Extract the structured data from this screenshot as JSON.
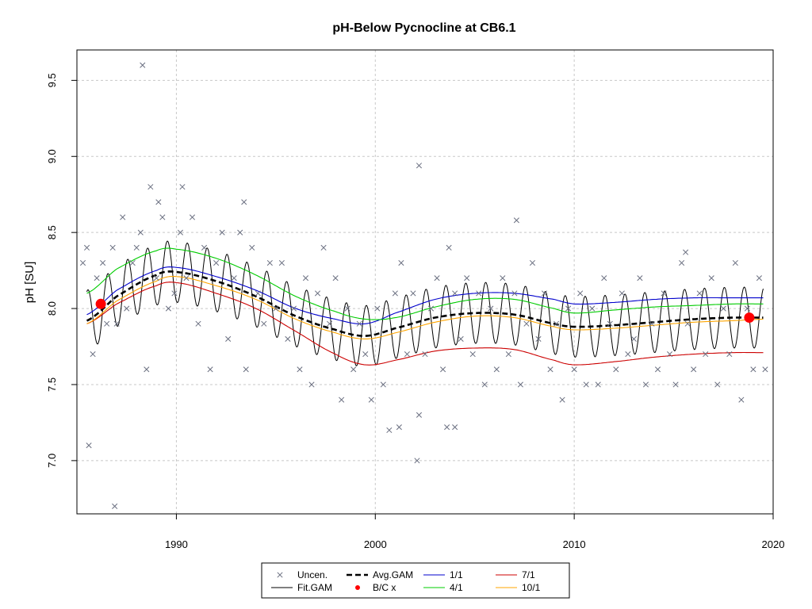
{
  "chart_data": {
    "type": "line",
    "title": "pH-Below Pycnocline at CB6.1",
    "xlabel": "",
    "ylabel": "pH [SU]",
    "xlim": [
      1985,
      2020
    ],
    "ylim": [
      6.65,
      9.7
    ],
    "x_ticks": [
      "1990",
      "2000",
      "2010",
      "2020"
    ],
    "y_ticks": [
      "7.0",
      "7.5",
      "8.0",
      "8.5",
      "9.0",
      "9.5"
    ],
    "grid": true,
    "legend_position": "bottom",
    "legend": [
      {
        "label": "Uncen.",
        "style": "cross",
        "color": "#6a6f80"
      },
      {
        "label": "Fit.GAM",
        "style": "line",
        "color": "#000000"
      },
      {
        "label": "Avg.GAM",
        "style": "dashed",
        "color": "#000000"
      },
      {
        "label": "B/C x",
        "style": "dot",
        "color": "#ff0000"
      },
      {
        "label": "1/1",
        "style": "line",
        "color": "#0000cc"
      },
      {
        "label": "4/1",
        "style": "line",
        "color": "#00cc00"
      },
      {
        "label": "7/1",
        "style": "line",
        "color": "#cc0000"
      },
      {
        "label": "10/1",
        "style": "line",
        "color": "#ffa500"
      }
    ],
    "series": [
      {
        "name": "Avg.GAM",
        "x": [
          1985.5,
          1987,
          1989,
          1990,
          1992,
          1994,
          1996,
          1998,
          1999.5,
          2001,
          2003,
          2005,
          2007,
          2009,
          2010,
          2012,
          2014,
          2016,
          2018,
          2019.5
        ],
        "y": [
          7.92,
          8.08,
          8.22,
          8.24,
          8.18,
          8.08,
          7.95,
          7.86,
          7.82,
          7.87,
          7.94,
          7.97,
          7.96,
          7.9,
          7.88,
          7.89,
          7.91,
          7.93,
          7.94,
          7.94
        ]
      },
      {
        "name": "1/1",
        "x": [
          1985.5,
          1987,
          1989,
          1990,
          1992,
          1994,
          1996,
          1998,
          1999.5,
          2001,
          2003,
          2005,
          2007,
          2009,
          2010,
          2012,
          2014,
          2016,
          2018,
          2019.5
        ],
        "y": [
          7.96,
          8.12,
          8.25,
          8.27,
          8.21,
          8.12,
          8.0,
          7.93,
          7.9,
          7.97,
          8.06,
          8.1,
          8.1,
          8.06,
          8.03,
          8.04,
          8.06,
          8.07,
          8.07,
          8.07
        ]
      },
      {
        "name": "4/1",
        "x": [
          1985.5,
          1987,
          1989,
          1990,
          1992,
          1994,
          1996,
          1998,
          1999.5,
          2001,
          2003,
          2005,
          2007,
          2009,
          2010,
          2012,
          2014,
          2016,
          2018,
          2019.5
        ],
        "y": [
          8.1,
          8.26,
          8.38,
          8.39,
          8.33,
          8.22,
          8.08,
          7.98,
          7.93,
          7.94,
          8.01,
          8.06,
          8.06,
          8.0,
          7.97,
          7.99,
          8.01,
          8.02,
          8.03,
          8.03
        ]
      },
      {
        "name": "7/1",
        "x": [
          1985.5,
          1987,
          1989,
          1990,
          1992,
          1994,
          1996,
          1998,
          1999.5,
          2001,
          2003,
          2005,
          2007,
          2009,
          2010,
          2012,
          2014,
          2016,
          2018,
          2019.5
        ],
        "y": [
          7.9,
          8.03,
          8.15,
          8.17,
          8.1,
          8.0,
          7.85,
          7.7,
          7.63,
          7.66,
          7.72,
          7.74,
          7.73,
          7.66,
          7.63,
          7.65,
          7.68,
          7.7,
          7.71,
          7.71
        ]
      },
      {
        "name": "10/1",
        "x": [
          1985.5,
          1987,
          1989,
          1990,
          1992,
          1994,
          1996,
          1998,
          1999.5,
          2001,
          2003,
          2005,
          2007,
          2009,
          2010,
          2012,
          2014,
          2016,
          2018,
          2019.5
        ],
        "y": [
          7.9,
          8.05,
          8.18,
          8.21,
          8.15,
          8.06,
          7.93,
          7.84,
          7.8,
          7.84,
          7.91,
          7.95,
          7.94,
          7.88,
          7.86,
          7.87,
          7.89,
          7.91,
          7.92,
          7.93
        ]
      }
    ],
    "fit_gam": {
      "name": "Fit.GAM",
      "x_start": 1985.5,
      "x_end": 2019.5,
      "seasonal_amplitude": 0.2,
      "cycles_per_year": 1
    },
    "bc_points": {
      "name": "B/C x",
      "x": [
        1986.2,
        2018.8
      ],
      "y": [
        8.03,
        7.94
      ]
    },
    "uncensored_points": {
      "name": "Uncen.",
      "x": [
        1985.3,
        1985.5,
        1985.8,
        1986.0,
        1986.3,
        1986.5,
        1986.8,
        1987.0,
        1987.3,
        1987.5,
        1987.8,
        1988.0,
        1988.2,
        1988.5,
        1988.7,
        1989.0,
        1989.3,
        1989.6,
        1989.9,
        1990.2,
        1990.5,
        1990.8,
        1991.1,
        1991.4,
        1991.7,
        1992.0,
        1992.3,
        1992.6,
        1992.9,
        1993.2,
        1993.5,
        1993.8,
        1994.1,
        1994.4,
        1994.7,
        1995.0,
        1995.3,
        1995.6,
        1995.9,
        1996.2,
        1996.5,
        1996.8,
        1997.1,
        1997.4,
        1997.7,
        1998.0,
        1998.3,
        1998.6,
        1998.9,
        1999.2,
        1999.5,
        1999.8,
        2000.1,
        2000.4,
        2000.7,
        2001.0,
        2001.3,
        2001.6,
        2001.9,
        2002.2,
        2002.5,
        2002.8,
        2003.1,
        2003.4,
        2003.7,
        2004.0,
        2004.3,
        2004.6,
        2004.9,
        2005.2,
        2005.5,
        2005.8,
        2006.1,
        2006.4,
        2006.7,
        2007.0,
        2007.3,
        2007.6,
        2007.9,
        2008.2,
        2008.5,
        2008.8,
        2009.1,
        2009.4,
        2009.7,
        2010.0,
        2010.3,
        2010.6,
        2010.9,
        2011.2,
        2011.5,
        2011.8,
        2012.1,
        2012.4,
        2012.7,
        2013.0,
        2013.3,
        2013.6,
        2013.9,
        2014.2,
        2014.5,
        2014.8,
        2015.1,
        2015.4,
        2015.7,
        2016.0,
        2016.3,
        2016.6,
        2016.9,
        2017.2,
        2017.5,
        2017.8,
        2018.1,
        2018.4,
        2018.7,
        2019.0,
        2019.3,
        2019.6,
        1988.3,
        2002.2,
        1985.6,
        1986.9,
        2002.1,
        1989.1,
        1990.3,
        1993.4,
        2007.1,
        2004.0,
        2015.6,
        2001.2,
        2003.6
      ],
      "y": [
        8.3,
        8.4,
        7.7,
        8.2,
        8.3,
        7.9,
        8.4,
        7.9,
        8.6,
        8.0,
        8.3,
        8.4,
        8.5,
        7.6,
        8.8,
        8.2,
        8.6,
        8.0,
        8.1,
        8.5,
        8.2,
        8.6,
        7.9,
        8.4,
        7.6,
        8.3,
        8.5,
        7.8,
        8.2,
        8.5,
        7.6,
        8.4,
        8.1,
        7.9,
        8.3,
        8.0,
        8.3,
        7.8,
        8.0,
        7.6,
        8.2,
        7.5,
        8.1,
        8.4,
        7.9,
        8.2,
        7.4,
        8.0,
        7.6,
        7.9,
        7.7,
        7.4,
        8.0,
        7.5,
        7.2,
        8.1,
        8.3,
        7.7,
        8.1,
        7.3,
        7.7,
        8.0,
        8.2,
        7.6,
        8.4,
        8.1,
        7.8,
        8.2,
        7.7,
        8.1,
        7.5,
        8.0,
        7.6,
        8.2,
        7.7,
        8.1,
        7.5,
        7.9,
        8.3,
        7.8,
        8.1,
        7.6,
        7.9,
        7.4,
        8.0,
        7.6,
        8.1,
        7.5,
        8.0,
        7.5,
        8.2,
        7.9,
        7.6,
        8.1,
        7.7,
        7.8,
        8.2,
        7.5,
        7.9,
        7.6,
        8.1,
        7.7,
        7.5,
        8.3,
        7.9,
        7.6,
        8.1,
        7.7,
        8.2,
        7.5,
        8.0,
        7.7,
        8.3,
        7.4,
        8.0,
        7.6,
        8.2,
        7.6,
        9.6,
        8.94,
        7.1,
        6.7,
        7.0,
        8.7,
        8.8,
        8.7,
        8.58,
        7.22,
        8.37,
        7.22,
        7.22
      ]
    }
  }
}
